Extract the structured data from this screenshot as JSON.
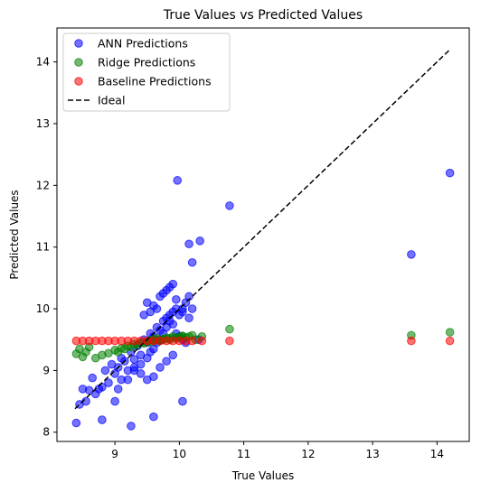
{
  "chart_data": {
    "type": "scatter",
    "title": "True Values vs Predicted Values",
    "xlabel": "True Values",
    "ylabel": "Predicted Values",
    "xlim": [
      8.1,
      14.5
    ],
    "ylim": [
      7.85,
      14.55
    ],
    "xticks": [
      9,
      10,
      11,
      12,
      13,
      14
    ],
    "yticks": [
      8,
      9,
      10,
      11,
      12,
      13,
      14
    ],
    "grid": false,
    "legend_position": "top-left",
    "series": [
      {
        "name": "ANN Predictions",
        "color": "#0000ff",
        "marker": "circle",
        "x": [
          8.4,
          8.45,
          8.5,
          8.55,
          8.6,
          8.65,
          8.7,
          8.75,
          8.8,
          8.85,
          8.9,
          8.95,
          9.0,
          9.05,
          9.1,
          9.15,
          9.2,
          9.25,
          9.3,
          9.35,
          9.4,
          9.45,
          9.5,
          9.55,
          9.6,
          9.65,
          9.7,
          9.75,
          9.8,
          9.85,
          9.9,
          9.95,
          10.0,
          10.05,
          10.1,
          10.15,
          10.2,
          10.3,
          9.05,
          9.1,
          9.2,
          9.3,
          9.4,
          9.5,
          9.55,
          9.6,
          9.65,
          9.7,
          9.75,
          9.8,
          9.85,
          9.9,
          9.95,
          10.0,
          10.05,
          10.1,
          9.5,
          9.6,
          9.7,
          9.8,
          9.9,
          9.45,
          9.55,
          9.65,
          9.75,
          9.85,
          9.95,
          10.05,
          10.15,
          9.3,
          9.4,
          9.5,
          9.6,
          9.7,
          9.8,
          9.9,
          8.8,
          9.0,
          9.25,
          9.6,
          9.97,
          10.05,
          10.15,
          10.2,
          10.32,
          10.78,
          13.6,
          14.2
        ],
        "y": [
          8.15,
          8.45,
          8.7,
          8.5,
          8.68,
          8.88,
          8.62,
          8.7,
          8.73,
          9.0,
          8.8,
          9.1,
          8.95,
          9.05,
          9.2,
          9.15,
          9.0,
          9.3,
          9.18,
          9.4,
          9.25,
          9.5,
          9.45,
          9.6,
          9.55,
          9.7,
          9.65,
          9.8,
          9.85,
          9.9,
          9.95,
          10.0,
          9.9,
          9.95,
          10.1,
          10.2,
          10.0,
          9.5,
          8.7,
          8.85,
          8.85,
          9.0,
          9.1,
          9.2,
          9.3,
          9.35,
          9.45,
          9.5,
          9.6,
          9.7,
          9.8,
          9.75,
          9.6,
          9.55,
          9.5,
          9.45,
          10.1,
          10.05,
          10.2,
          10.3,
          10.4,
          9.9,
          9.95,
          10.0,
          10.25,
          10.35,
          10.15,
          10.0,
          9.85,
          9.05,
          8.95,
          8.85,
          8.9,
          9.05,
          9.15,
          9.25,
          8.2,
          8.5,
          8.1,
          8.25,
          12.08,
          8.5,
          11.05,
          10.75,
          11.1,
          11.67,
          10.88,
          12.2
        ]
      },
      {
        "name": "Ridge Predictions",
        "color": "#008000",
        "marker": "circle",
        "x": [
          8.4,
          8.45,
          8.5,
          8.55,
          8.6,
          8.7,
          8.8,
          8.9,
          9.0,
          9.1,
          9.2,
          9.3,
          9.4,
          9.5,
          9.55,
          9.6,
          9.65,
          9.7,
          9.75,
          9.8,
          9.85,
          9.9,
          9.95,
          10.0,
          10.05,
          10.1,
          10.15,
          10.2,
          10.25,
          10.35,
          10.78,
          13.6,
          14.2,
          9.05,
          9.15,
          9.25,
          9.35,
          9.45,
          9.55,
          9.65,
          9.75,
          9.85,
          9.95,
          10.05
        ],
        "y": [
          9.27,
          9.35,
          9.22,
          9.3,
          9.38,
          9.2,
          9.25,
          9.28,
          9.33,
          9.36,
          9.4,
          9.43,
          9.45,
          9.47,
          9.49,
          9.5,
          9.52,
          9.48,
          9.51,
          9.53,
          9.5,
          9.55,
          9.52,
          9.54,
          9.56,
          9.53,
          9.55,
          9.57,
          9.5,
          9.55,
          9.67,
          9.57,
          9.62,
          9.3,
          9.35,
          9.38,
          9.42,
          9.44,
          9.46,
          9.49,
          9.5,
          9.52,
          9.53,
          9.55
        ]
      },
      {
        "name": "Baseline Predictions",
        "color": "#ff0000",
        "marker": "circle",
        "x": [
          8.4,
          8.5,
          8.6,
          8.7,
          8.8,
          8.9,
          9.0,
          9.1,
          9.2,
          9.3,
          9.4,
          9.5,
          9.6,
          9.7,
          9.8,
          9.9,
          10.0,
          10.1,
          10.2,
          10.35,
          10.78,
          13.6,
          14.2
        ],
        "y": [
          9.48,
          9.48,
          9.48,
          9.48,
          9.48,
          9.48,
          9.48,
          9.48,
          9.48,
          9.48,
          9.48,
          9.48,
          9.48,
          9.48,
          9.48,
          9.48,
          9.48,
          9.48,
          9.48,
          9.48,
          9.48,
          9.48,
          9.48
        ]
      },
      {
        "name": "Ideal",
        "type": "line",
        "color": "#000000",
        "dash": "dashed",
        "x": [
          8.38,
          14.2
        ],
        "y": [
          8.38,
          14.2
        ]
      }
    ]
  }
}
